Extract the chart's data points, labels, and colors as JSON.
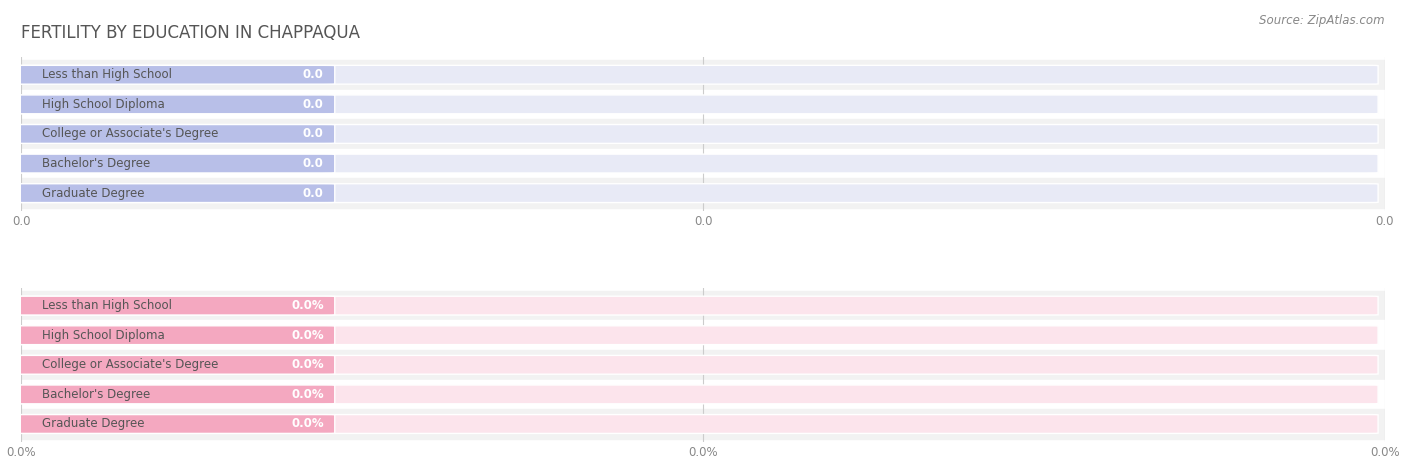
{
  "title": "FERTILITY BY EDUCATION IN CHAPPAQUA",
  "source": "Source: ZipAtlas.com",
  "categories": [
    "Less than High School",
    "High School Diploma",
    "College or Associate's Degree",
    "Bachelor's Degree",
    "Graduate Degree"
  ],
  "top_values": [
    0.0,
    0.0,
    0.0,
    0.0,
    0.0
  ],
  "bottom_values": [
    0.0,
    0.0,
    0.0,
    0.0,
    0.0
  ],
  "top_bar_color": "#b8bfe8",
  "bottom_bar_color": "#f4a8c0",
  "top_bg_bar_color": "#e8eaf6",
  "bottom_bg_bar_color": "#fce4ec",
  "bg_color": "#ffffff",
  "row_bg_even": "#f2f2f2",
  "row_bg_odd": "#ffffff",
  "title_color": "#555555",
  "source_color": "#888888",
  "gridline_color": "#cccccc",
  "axis_label_color": "#888888",
  "cat_label_color": "#555555",
  "value_label_top_color": "#7b7fc4",
  "value_label_bottom_color": "#e07090",
  "bar_height": 0.62,
  "min_bar_width": 0.22,
  "figwidth": 14.06,
  "figheight": 4.75,
  "title_fontsize": 12,
  "label_fontsize": 8.5,
  "source_fontsize": 8.5,
  "tick_fontsize": 8.5,
  "category_fontsize": 8.5
}
